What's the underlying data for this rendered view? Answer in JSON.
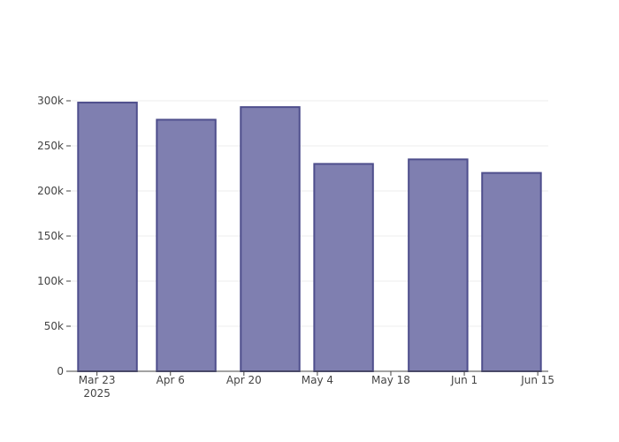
{
  "chart_data": {
    "type": "bar",
    "x": [
      "2025-03-25",
      "2025-04-09",
      "2025-04-25",
      "2025-05-09",
      "2025-05-27",
      "2025-06-10"
    ],
    "values": [
      298000,
      279000,
      293000,
      230000,
      235000,
      220000
    ],
    "color": "#7f7fb0",
    "edge_color": "#4e4e8c",
    "xlim": [
      "2025-03-18",
      "2025-06-17"
    ],
    "xticks": [
      {
        "value": "2025-03-23",
        "label": "Mar 23\n2025"
      },
      {
        "value": "2025-04-06",
        "label": "Apr 6"
      },
      {
        "value": "2025-04-20",
        "label": "Apr 20"
      },
      {
        "value": "2025-05-04",
        "label": "May 4"
      },
      {
        "value": "2025-05-18",
        "label": "May 18"
      },
      {
        "value": "2025-06-01",
        "label": "Jun 1"
      },
      {
        "value": "2025-06-15",
        "label": "Jun 15"
      }
    ],
    "ylim": [
      0,
      300000
    ],
    "yticks": [
      0,
      {
        "value": 50000,
        "label": "50k"
      },
      {
        "value": 100000,
        "label": "100k"
      },
      {
        "value": 150000,
        "label": "150k"
      },
      {
        "value": 200000,
        "label": "200k"
      },
      {
        "value": 250000,
        "label": "250k"
      },
      {
        "value": 300000,
        "label": "300k"
      }
    ],
    "grid": true
  }
}
